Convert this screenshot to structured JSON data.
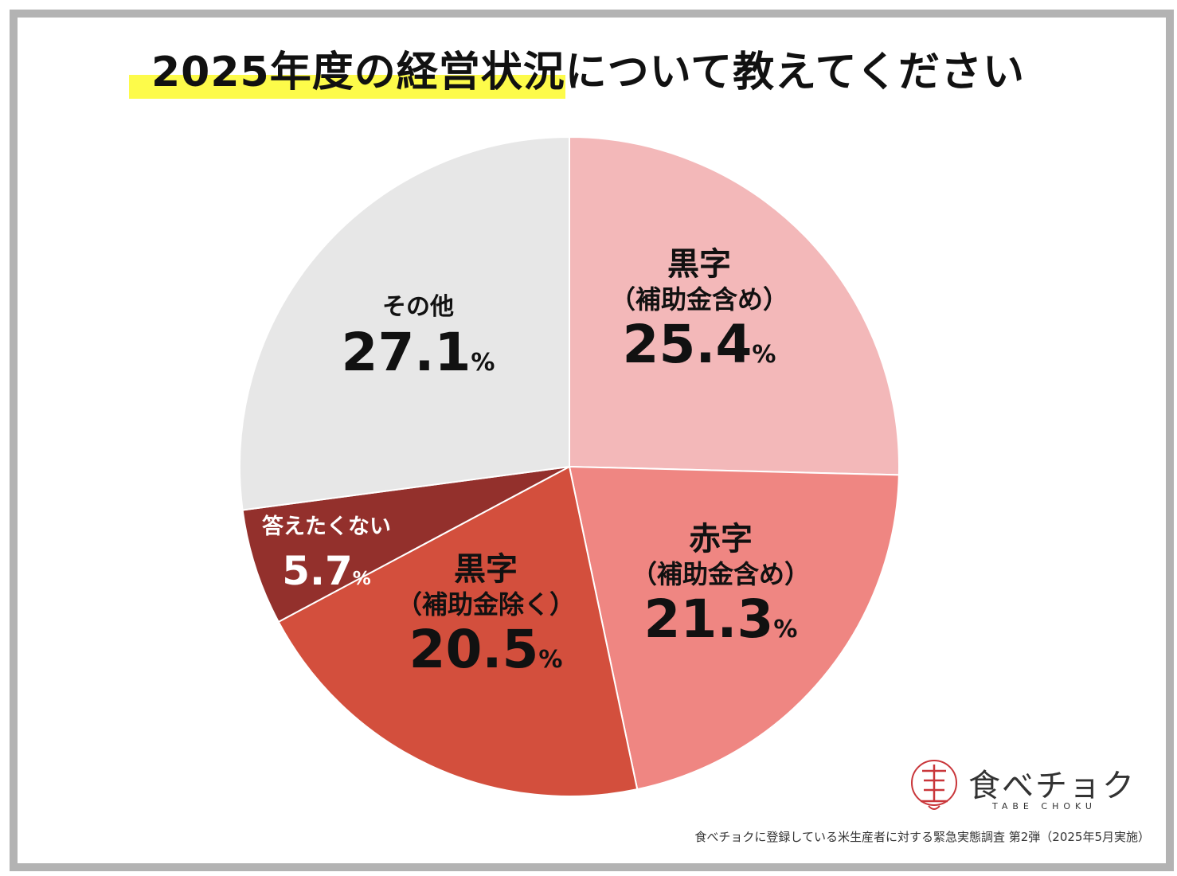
{
  "chart_data": {
    "type": "pie",
    "title": "2025年度の経営状況について教えてください",
    "slices": [
      {
        "name": "黒字",
        "sub": "（補助金含め）",
        "value": 25.4,
        "display": "25.4",
        "unit": "%",
        "color": "#f3b8b9",
        "text_color": "#111111"
      },
      {
        "name": "赤字",
        "sub": "（補助金含め）",
        "value": 21.3,
        "display": "21.3",
        "unit": "%",
        "color": "#ef8682",
        "text_color": "#111111"
      },
      {
        "name": "黒字",
        "sub": "（補助金除く）",
        "value": 20.5,
        "display": "20.5",
        "unit": "%",
        "color": "#d34f3d",
        "text_color": "#111111"
      },
      {
        "name": "答えたくない",
        "sub": "",
        "value": 5.7,
        "display": "5.7",
        "unit": "%",
        "color": "#93302c",
        "text_color": "#ffffff"
      },
      {
        "name": "その他",
        "sub": "",
        "value": 27.1,
        "display": "27.1",
        "unit": "%",
        "color": "#e7e7e7",
        "text_color": "#111111"
      }
    ],
    "start": "12 o'clock",
    "direction": "clockwise"
  },
  "logo": {
    "name": "食べチョク",
    "sub": "TABE CHOKU"
  },
  "footnote": "食べチョクに登録している米生産者に対する緊急実態調査 第2弾（2025年5月実施）"
}
